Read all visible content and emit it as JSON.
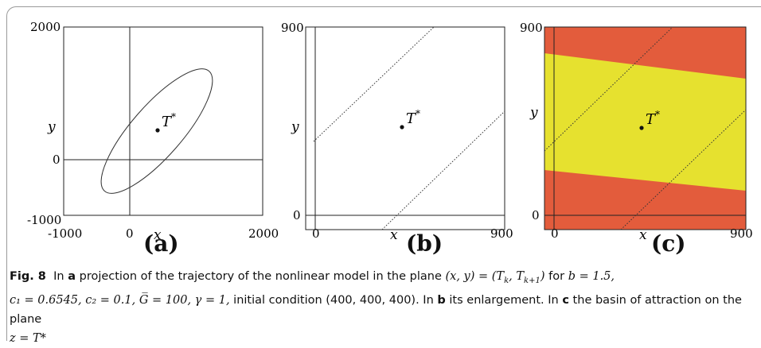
{
  "figure": {
    "panels": [
      {
        "id": "a",
        "label": "(a)",
        "x_ticks": [
          "-1000",
          "0",
          "2000"
        ],
        "y_ticks": [
          "2000",
          "0",
          "-1000"
        ],
        "xlabel": "x",
        "ylabel": "y",
        "point_label": "T*"
      },
      {
        "id": "b",
        "label": "(b)",
        "x_ticks": [
          "0",
          "900"
        ],
        "y_ticks": [
          "900",
          "0"
        ],
        "xlabel": "x",
        "ylabel": "y",
        "point_label": "T*"
      },
      {
        "id": "c",
        "label": "(c)",
        "x_ticks": [
          "0",
          "900"
        ],
        "y_ticks": [
          "900",
          "0"
        ],
        "xlabel": "x",
        "ylabel": "y",
        "point_label": "T*",
        "colors": {
          "outside": "#e35c3c",
          "basin": "#e6e12f"
        }
      }
    ]
  },
  "caption": {
    "fig_label": "Fig. 8",
    "text_1": "In ",
    "bold_a": "a",
    "text_2": " projection of the trajectory of the nonlinear model in the plane ",
    "math_plane": "(x, y) = (T",
    "text_3": " for ",
    "math_params_1": "b = 1.5,",
    "math_params_2": "c₁ = 0.6545, c₂ = 0.1, G̅ = 100, γ = 1,",
    "text_4": " initial condition (400, 400, 400). In ",
    "bold_b": "b",
    "text_5": " its enlargement. In ",
    "bold_c": "c",
    "text_6": " the basin of attraction on the plane ",
    "math_plane_z": "z = T*"
  }
}
